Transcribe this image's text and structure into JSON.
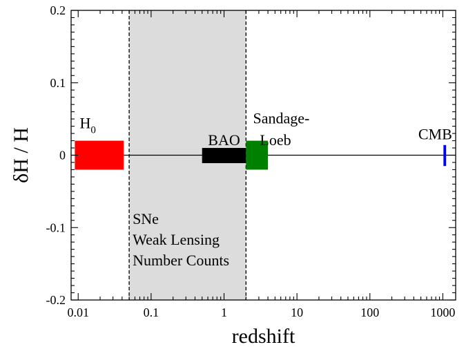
{
  "chart_data": {
    "type": "bar",
    "xlabel": "redshift",
    "ylabel": "δH / H",
    "xscale": "log",
    "xlim": [
      0.008,
      1500
    ],
    "ylim": [
      -0.2,
      0.2
    ],
    "xticks": [
      {
        "value": 0.01,
        "label": "0.01"
      },
      {
        "value": 0.1,
        "label": "0.1"
      },
      {
        "value": 1,
        "label": "1"
      },
      {
        "value": 10,
        "label": "10"
      },
      {
        "value": 100,
        "label": "100"
      },
      {
        "value": 1000,
        "label": "1000"
      }
    ],
    "yticks": [
      {
        "value": 0.2,
        "label": "0.2"
      },
      {
        "value": 0.1,
        "label": "0.1"
      },
      {
        "value": 0,
        "label": "0"
      },
      {
        "value": -0.1,
        "label": "-0.1"
      },
      {
        "value": -0.2,
        "label": "-0.2"
      }
    ],
    "zero_line": 0,
    "shaded_region": {
      "x": [
        0.05,
        2
      ],
      "color": "#dcdcdc",
      "labels": [
        "SNe",
        "Weak Lensing",
        "Number Counts"
      ]
    },
    "boxes": [
      {
        "label": "H",
        "subscript": "0",
        "x": [
          0.009,
          0.042
        ],
        "y": [
          -0.02,
          0.02
        ],
        "color": "#ff0000"
      },
      {
        "label": "BAO",
        "x": [
          0.5,
          2.0
        ],
        "y": [
          -0.011,
          0.01
        ],
        "color": "#000000"
      },
      {
        "label": "Sandage-",
        "label2": "Loeb",
        "x": [
          2.0,
          4.0
        ],
        "y": [
          -0.02,
          0.02
        ],
        "color": "#008000"
      },
      {
        "label": "CMB",
        "x": [
          1020,
          1110
        ],
        "y": [
          -0.015,
          0.014
        ],
        "color": "#0000ff"
      }
    ]
  }
}
